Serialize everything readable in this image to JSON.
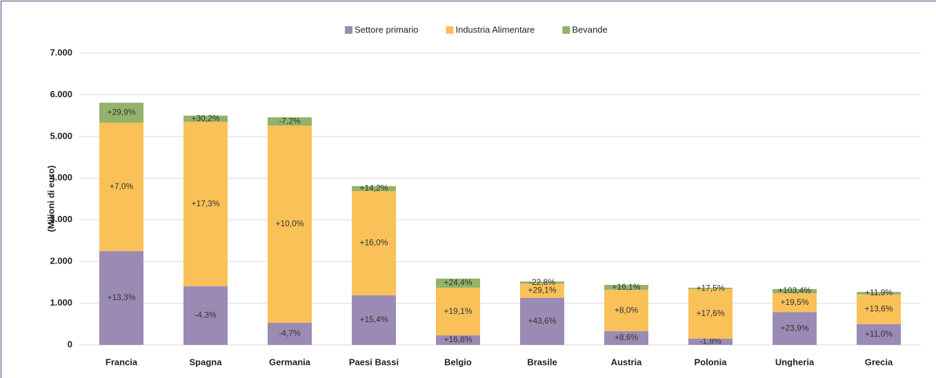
{
  "chart_data": {
    "type": "stacked-bar",
    "y_axis_label": "(Milioni di euro)",
    "categories": [
      "Francia",
      "Spagna",
      "Germania",
      "Paesi Bassi",
      "Belgio",
      "Brasile",
      "Austria",
      "Polonia",
      "Ungheria",
      "Grecia"
    ],
    "series": [
      {
        "name": "Settore primario",
        "color": "#9b8bb4",
        "values": [
          2250,
          1410,
          530,
          1190,
          230,
          1130,
          330,
          150,
          790,
          500
        ],
        "labels": [
          "+13,3%",
          "-4,3%",
          "-4,7%",
          "+15,4%",
          "+16,8%",
          "+43,6%",
          "+8,6%",
          "-1,8%",
          "+23,9%",
          "+11,0%"
        ]
      },
      {
        "name": "Industria Alimentare",
        "color": "#f9c158",
        "values": [
          3080,
          3940,
          4730,
          2500,
          1140,
          340,
          990,
          1190,
          450,
          710
        ],
        "labels": [
          "+7,0%",
          "+17,3%",
          "+10,0%",
          "+16,0%",
          "+19,1%",
          "+29,1%",
          "+8,0%",
          "+17,6%",
          "+19,5%",
          "+13,6%"
        ]
      },
      {
        "name": "Bevande",
        "color": "#93b36a",
        "values": [
          480,
          150,
          200,
          120,
          220,
          50,
          120,
          30,
          100,
          60
        ],
        "labels": [
          "+29,9%",
          "+30,2%",
          "-7,2%",
          "+14,2%",
          "+24,4%",
          "-22,8%",
          "+16,1%",
          "+17,5%",
          "+103,4%",
          "+11,9%"
        ]
      }
    ],
    "ylim": [
      0,
      7000
    ],
    "yticks": [
      0,
      {
        "value": 1000,
        "label": "1.000"
      },
      {
        "value": 2000,
        "label": "2.000"
      },
      {
        "value": 3000,
        "label": "3.000"
      },
      {
        "value": 4000,
        "label": "4.000"
      },
      {
        "value": 5000,
        "label": "5.000"
      },
      {
        "value": 6000,
        "label": "6.000"
      },
      {
        "value": 7000,
        "label": "7.000"
      }
    ],
    "grid": true,
    "legend": "top"
  }
}
